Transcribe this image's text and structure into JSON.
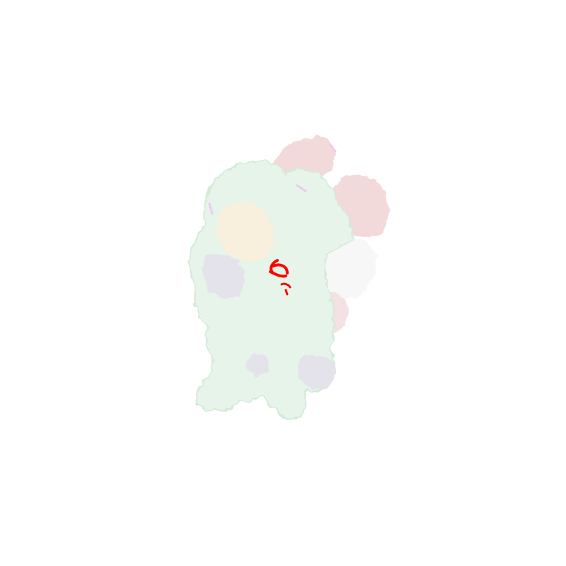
{
  "scene": {
    "background": "#ffffff",
    "subject": "molecular-surface-render",
    "colors": {
      "main_body": "#e6f4ea",
      "main_body_shadow": "#d4ead9",
      "domain_pink": "#f3dada",
      "domain_pink_shadow": "#ead0d0",
      "domain_cream": "#f8f0dc",
      "domain_lavender": "#e4e2ea",
      "domain_white": "#f7f7f7",
      "domain_rose": "#f5e0e4",
      "highlight_red": "#ff0000",
      "magenta_trace": "#f0c8f0"
    }
  }
}
